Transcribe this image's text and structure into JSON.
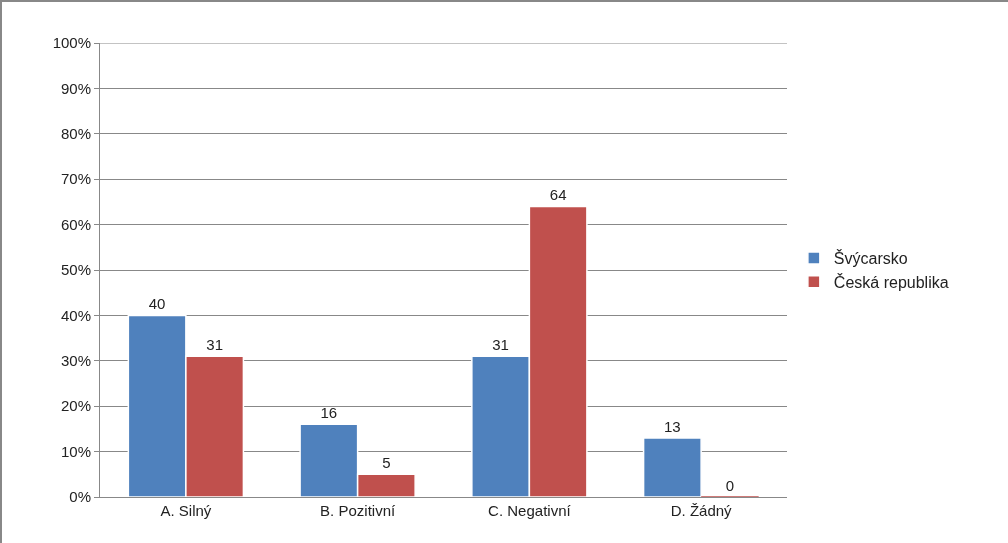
{
  "chart_data": {
    "type": "bar",
    "categories": [
      "A. Silný",
      "B. Pozitivní",
      "C. Negativní",
      "D. Žádný"
    ],
    "series": [
      {
        "name": "Švýcarsko",
        "color": "#4f81bd",
        "values": [
          40,
          16,
          31,
          13
        ]
      },
      {
        "name": "Česká republika",
        "color": "#c0504d",
        "values": [
          31,
          5,
          64,
          0
        ]
      }
    ],
    "ylim": [
      0,
      100
    ],
    "yticks": [
      {
        "value": 0,
        "label": "0%"
      },
      {
        "value": 10,
        "label": "10%"
      },
      {
        "value": 20,
        "label": "20%"
      },
      {
        "value": 30,
        "label": "30%"
      },
      {
        "value": 40,
        "label": "40%"
      },
      {
        "value": 50,
        "label": "50%"
      },
      {
        "value": 60,
        "label": "60%"
      },
      {
        "value": 70,
        "label": "70%"
      },
      {
        "value": 80,
        "label": "80%"
      },
      {
        "value": 90,
        "label": "90%"
      },
      {
        "value": 100,
        "label": "100%"
      }
    ],
    "grid": "y",
    "legend": "right",
    "data_labels": true
  }
}
